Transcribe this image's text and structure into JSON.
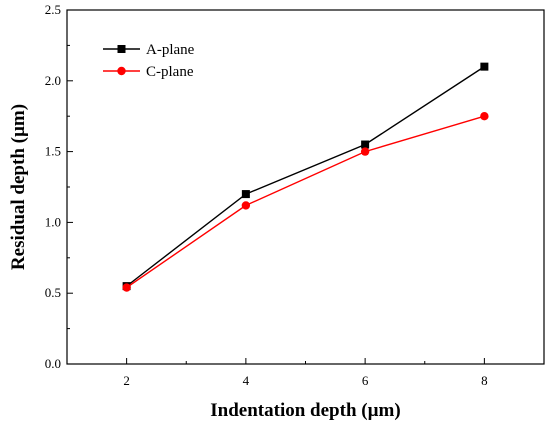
{
  "chart_data": {
    "type": "line",
    "title": "",
    "xlabel": "Indentation depth (µm)",
    "ylabel": "Residual depth (µm)",
    "xlim": [
      1,
      9
    ],
    "ylim": [
      0.0,
      2.5
    ],
    "x_ticks": [
      "2",
      "4",
      "6",
      "8"
    ],
    "y_ticks": [
      "0.0",
      "0.5",
      "1.0",
      "1.5",
      "2.0",
      "2.5"
    ],
    "grid": false,
    "legend_position": "top-left",
    "series": [
      {
        "name": "A-plane",
        "color": "#000000",
        "marker": "square",
        "x": [
          2,
          4,
          6,
          8
        ],
        "y": [
          0.55,
          1.2,
          1.55,
          2.1
        ]
      },
      {
        "name": "C-plane",
        "color": "#ff0000",
        "marker": "circle",
        "x": [
          2,
          4,
          6,
          8
        ],
        "y": [
          0.54,
          1.12,
          1.5,
          1.75
        ]
      }
    ]
  }
}
